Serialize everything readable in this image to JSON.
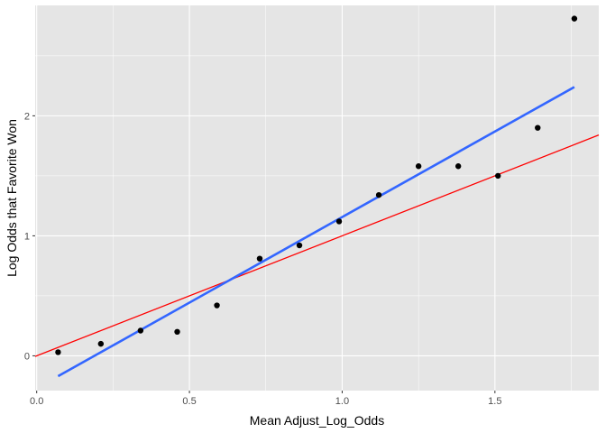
{
  "chart_data": {
    "type": "scatter",
    "title": "",
    "xlabel": "Mean Adjust_Log_Odds",
    "ylabel": "Log Odds that Favorite Won",
    "xlim": [
      -0.005,
      1.84
    ],
    "ylim": [
      -0.29,
      2.92
    ],
    "x_ticks": [
      0.0,
      0.5,
      1.0,
      1.5
    ],
    "x_tick_labels": [
      "0.0",
      "0.5",
      "1.0",
      "1.5"
    ],
    "y_ticks": [
      0,
      1,
      2
    ],
    "y_tick_labels": [
      "0",
      "1",
      "2"
    ],
    "grid": true,
    "points": {
      "x": [
        0.07,
        0.21,
        0.34,
        0.46,
        0.59,
        0.73,
        0.86,
        0.99,
        1.12,
        1.25,
        1.38,
        1.51,
        1.64,
        1.76
      ],
      "y": [
        0.03,
        0.1,
        0.21,
        0.2,
        0.42,
        0.81,
        0.92,
        1.12,
        1.34,
        1.58,
        1.58,
        1.5,
        1.9,
        2.81
      ],
      "color": "#000000"
    },
    "fit_line": {
      "x": [
        0.07,
        1.76
      ],
      "y": [
        -0.17,
        2.24
      ],
      "color": "#3366ff"
    },
    "reference_line": {
      "intercept": 0,
      "slope": 1,
      "color": "#ff0000"
    },
    "panel_color": "#e5e5e5",
    "grid_color": "#ffffff"
  }
}
